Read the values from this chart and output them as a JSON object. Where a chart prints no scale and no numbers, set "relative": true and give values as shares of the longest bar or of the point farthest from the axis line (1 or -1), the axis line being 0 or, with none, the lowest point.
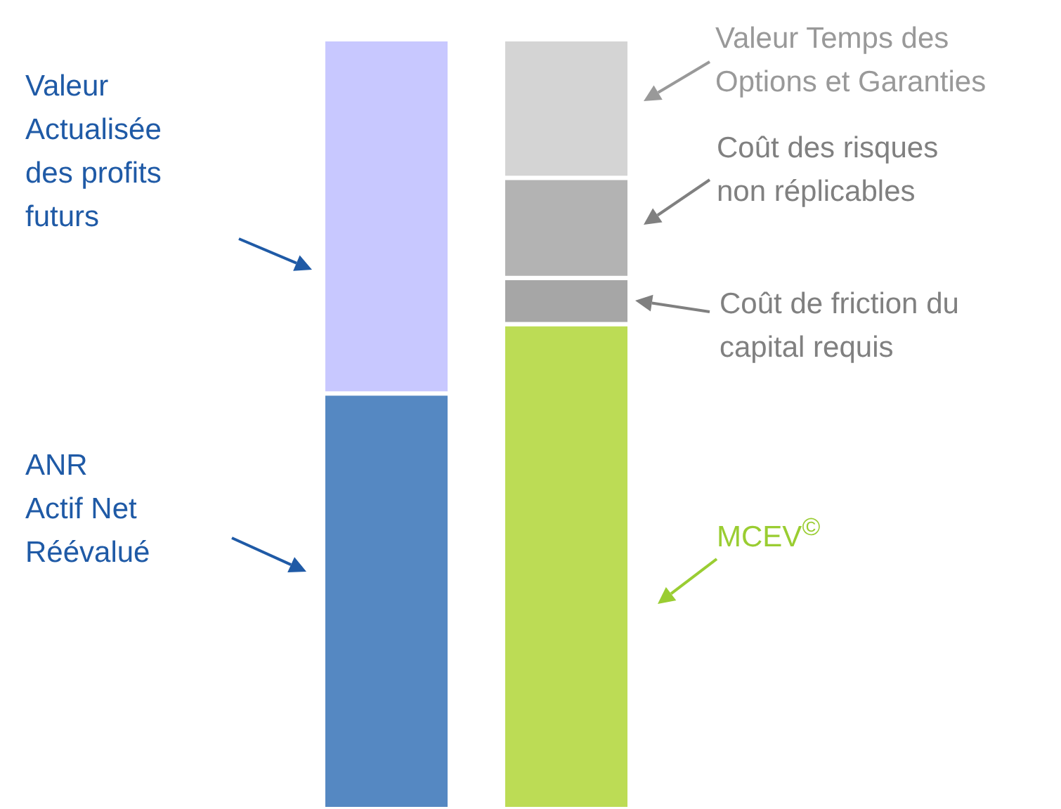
{
  "chart_data": {
    "type": "bar",
    "relative": true,
    "stacked": true,
    "categories": [
      null,
      null
    ],
    "series": [
      {
        "color": "#5588c2",
        "values": [
          0.54,
          null
        ]
      },
      {
        "color": "#c8c8ff",
        "values": [
          0.46,
          null
        ]
      },
      {
        "color": "#bcdc55",
        "values": [
          null,
          0.63
        ]
      },
      {
        "color": "#a6a6a6",
        "values": [
          null,
          0.06
        ]
      },
      {
        "color": "#b3b3b3",
        "values": [
          null,
          0.13
        ]
      },
      {
        "color": "#d4d4d4",
        "values": [
          null,
          0.18
        ]
      }
    ],
    "annotations": [
      "ANR\nActif Net\nRéévalué",
      "Valeur\nActualisée\ndes profits\nfuturs",
      "MCEV$^{©}$",
      "Coût de friction du\ncapital requis",
      "Coût des risques\nnon réplicables",
      "Valeur Temps des\nOptions et Garanties"
    ]
  }
}
